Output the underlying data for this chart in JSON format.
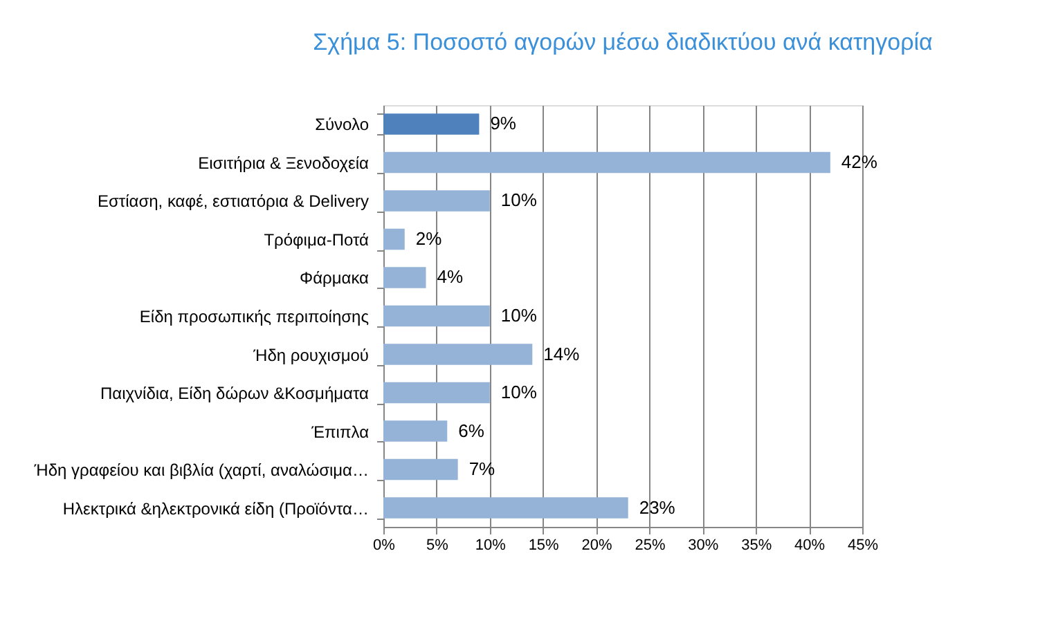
{
  "chart_data": {
    "type": "bar",
    "orientation": "horizontal",
    "title": "Σχήμα 5: Ποσοστό αγορών μέσω διαδικτύου ανά κατηγορία",
    "categories": [
      "Σύνολο",
      "Εισιτήρια  & Ξενοδοχεία",
      "Εστίαση,  καφέ, εστιατόρια  & Delivery",
      "Τρόφιμα-Ποτά",
      "Φάρμακα",
      "Είδη  προσωπικής  περιποίησης",
      "Ήδη ρουχισμού",
      "Παιχνίδια,  Είδη δώρων &Κοσμήματα",
      "Έπιπλα",
      "Ήδη γραφείου και βιβλία  (χαρτί, αναλώσιμα…",
      "Ηλεκτρικά  &ηλεκτρονικά  είδη (Προϊόντα…"
    ],
    "values": [
      9,
      42,
      10,
      2,
      4,
      10,
      14,
      10,
      6,
      7,
      23
    ],
    "colors": [
      "#4f81bd",
      "#95b3d7",
      "#95b3d7",
      "#95b3d7",
      "#95b3d7",
      "#95b3d7",
      "#95b3d7",
      "#95b3d7",
      "#95b3d7",
      "#95b3d7",
      "#95b3d7"
    ],
    "value_labels": [
      "9%",
      "42%",
      "10%",
      "2%",
      "4%",
      "10%",
      "14%",
      "10%",
      "6%",
      "7%",
      "23%"
    ],
    "xlim": [
      0,
      45
    ],
    "xticks": [
      {
        "value": 0,
        "label": "0%"
      },
      {
        "value": 5,
        "label": "5%"
      },
      {
        "value": 10,
        "label": "10%"
      },
      {
        "value": 15,
        "label": "15%"
      },
      {
        "value": 20,
        "label": "20%"
      },
      {
        "value": 25,
        "label": "25%"
      },
      {
        "value": 30,
        "label": "30%"
      },
      {
        "value": 35,
        "label": "35%"
      },
      {
        "value": 40,
        "label": "40%"
      },
      {
        "value": 45,
        "label": "45%"
      }
    ],
    "grid": "x"
  }
}
